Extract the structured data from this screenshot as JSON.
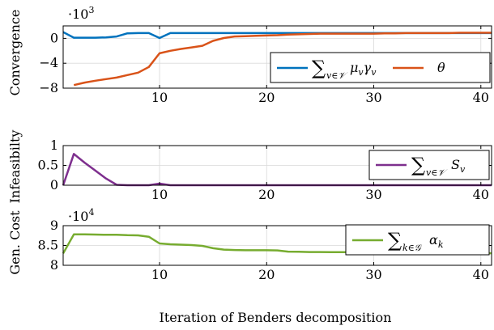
{
  "chart_data": [
    {
      "type": "line",
      "ylabel": "Convergence",
      "multiplier": "·10",
      "multiplier_exp": "3",
      "xlim": [
        1,
        41
      ],
      "ylim": [
        -8,
        2
      ],
      "xticks": [
        10,
        20,
        30,
        40
      ],
      "yticks": [
        0,
        -4,
        -8
      ],
      "ytick_labels": [
        "0",
        "−4",
        "−8"
      ],
      "grid": true,
      "legend_position": "bottom-right",
      "series": [
        {
          "name": "∑v∈𝒱 μvγv",
          "color": "#0072bd",
          "x": [
            1,
            2,
            3,
            4,
            5,
            6,
            7,
            8,
            9,
            10,
            11,
            12,
            13,
            14,
            15,
            16,
            17,
            18,
            19,
            20,
            21,
            22,
            23,
            24,
            25,
            26,
            27,
            28,
            29,
            30,
            31,
            32,
            33,
            34,
            35,
            36,
            37,
            38,
            39,
            40,
            41
          ],
          "y": [
            1.0,
            0.1,
            0.1,
            0.1,
            0.15,
            0.3,
            0.8,
            0.85,
            0.85,
            0.05,
            0.85,
            0.85,
            0.85,
            0.85,
            0.85,
            0.85,
            0.85,
            0.85,
            0.85,
            0.85,
            0.85,
            0.85,
            0.85,
            0.85,
            0.85,
            0.85,
            0.85,
            0.85,
            0.85,
            0.85,
            0.85,
            0.85,
            0.85,
            0.85,
            0.85,
            0.85,
            0.85,
            0.85,
            0.85,
            0.85,
            0.85
          ]
        },
        {
          "name": "θ",
          "color": "#d95319",
          "x": [
            2,
            3,
            4,
            5,
            6,
            7,
            8,
            9,
            10,
            11,
            12,
            13,
            14,
            15,
            16,
            17,
            18,
            19,
            20,
            21,
            22,
            23,
            24,
            25,
            26,
            27,
            28,
            29,
            30,
            31,
            32,
            33,
            34,
            35,
            36,
            37,
            38,
            39,
            40,
            41
          ],
          "y": [
            -7.5,
            -7.1,
            -6.8,
            -6.55,
            -6.3,
            -5.9,
            -5.5,
            -4.6,
            -2.4,
            -2.0,
            -1.7,
            -1.45,
            -1.2,
            -0.4,
            0.05,
            0.3,
            0.35,
            0.4,
            0.45,
            0.5,
            0.6,
            0.65,
            0.7,
            0.75,
            0.75,
            0.75,
            0.75,
            0.75,
            0.75,
            0.8,
            0.8,
            0.85,
            0.85,
            0.85,
            0.85,
            0.85,
            0.9,
            0.9,
            0.9,
            0.9
          ]
        }
      ]
    },
    {
      "type": "line",
      "ylabel": "Infeasibilty",
      "xlim": [
        1,
        41
      ],
      "ylim": [
        0,
        1
      ],
      "xticks": [
        10,
        20,
        30,
        40
      ],
      "yticks": [
        0,
        0.5,
        1
      ],
      "ytick_labels": [
        "0",
        "0.5",
        "1"
      ],
      "grid": true,
      "legend_position": "top-right",
      "series": [
        {
          "name": "∑v∈𝒱 Sv",
          "color": "#7e2f8e",
          "x": [
            1,
            2,
            3,
            4,
            5,
            6,
            7,
            8,
            9,
            10,
            11,
            12,
            13,
            14,
            15,
            16,
            17,
            18,
            19,
            20,
            21,
            22,
            23,
            24,
            25,
            26,
            27,
            28,
            29,
            30,
            31,
            32,
            33,
            34,
            35,
            36,
            37,
            38,
            39,
            40,
            41
          ],
          "y": [
            0,
            0.79,
            0.57,
            0.37,
            0.17,
            0.01,
            0,
            0,
            0,
            0.04,
            0,
            0,
            0,
            0,
            0,
            0,
            0,
            0,
            0,
            0,
            0,
            0,
            0,
            0,
            0,
            0,
            0,
            0,
            0,
            0,
            0,
            0,
            0,
            0,
            0,
            0,
            0,
            0,
            0,
            0,
            0
          ]
        }
      ]
    },
    {
      "type": "line",
      "ylabel": "Gen. Cost",
      "xlabel": "Iteration of Benders decomposition",
      "multiplier": "·10",
      "multiplier_exp": "4",
      "xlim": [
        1,
        41
      ],
      "ylim": [
        8,
        9
      ],
      "xticks": [
        10,
        20,
        30,
        40
      ],
      "yticks": [
        8,
        8.5,
        9
      ],
      "ytick_labels": [
        "8",
        "8.5",
        "9"
      ],
      "grid": true,
      "legend_position": "top-right",
      "series": [
        {
          "name": "∑k∈𝒢 αk",
          "color": "#77ac30",
          "x": [
            1,
            2,
            3,
            4,
            5,
            6,
            7,
            8,
            9,
            10,
            11,
            12,
            13,
            14,
            15,
            16,
            17,
            18,
            19,
            20,
            21,
            22,
            23,
            24,
            25,
            26,
            27,
            28,
            29,
            30,
            31,
            32,
            33,
            34,
            35,
            36,
            37,
            38,
            39,
            40,
            41
          ],
          "y": [
            8.3,
            8.78,
            8.78,
            8.775,
            8.77,
            8.77,
            8.76,
            8.755,
            8.72,
            8.55,
            8.53,
            8.52,
            8.51,
            8.49,
            8.43,
            8.395,
            8.385,
            8.38,
            8.38,
            8.38,
            8.375,
            8.345,
            8.34,
            8.335,
            8.335,
            8.33,
            8.33,
            8.33,
            8.33,
            8.32,
            8.32,
            8.315,
            8.315,
            8.315,
            8.315,
            8.315,
            8.31,
            8.31,
            8.31,
            8.305,
            8.305
          ]
        }
      ]
    }
  ]
}
